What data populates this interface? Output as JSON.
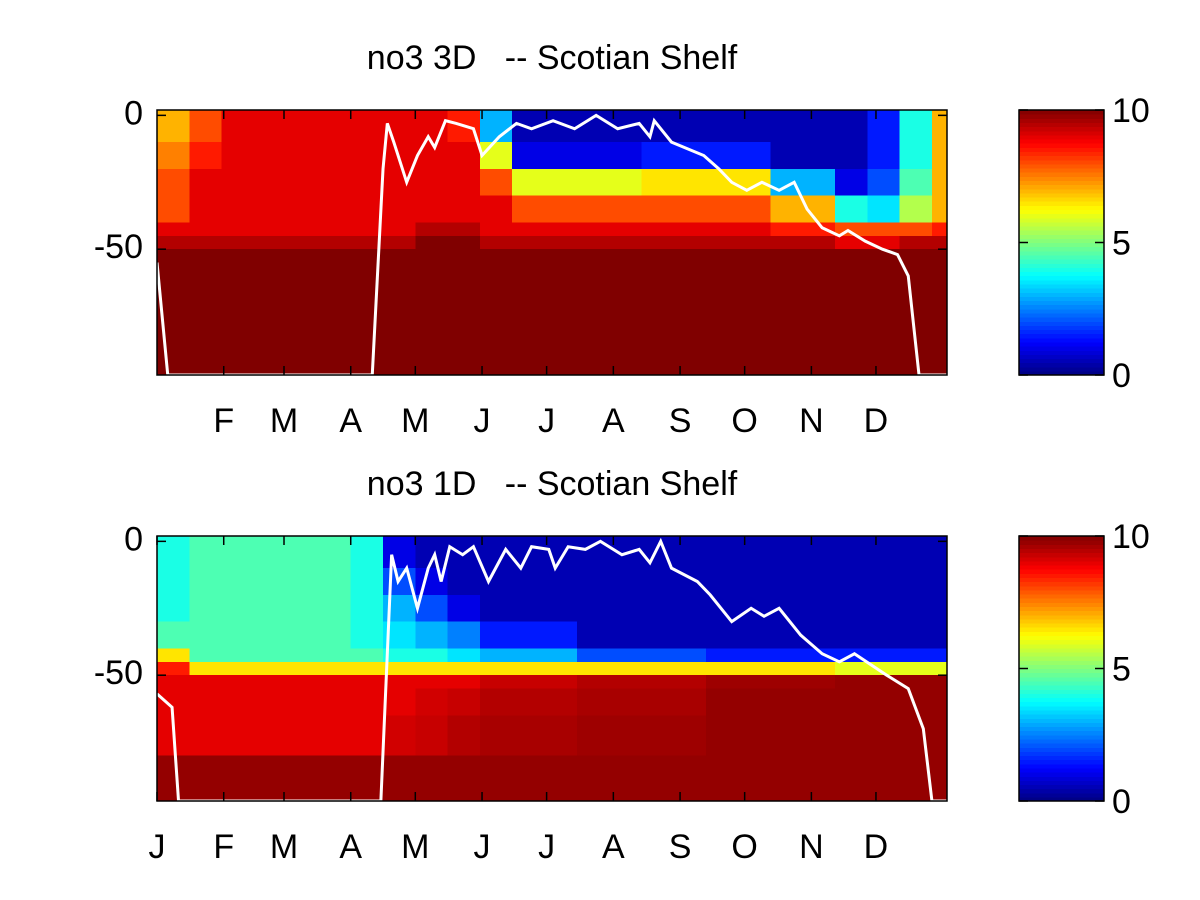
{
  "chart_data": [
    {
      "type": "heatmap",
      "title": "no3 3D   -- Scotian Shelf",
      "colormap": "jet",
      "clim": [
        0,
        10
      ],
      "cticks": [
        0,
        5,
        10
      ],
      "xlim": [
        1,
        368
      ],
      "ylim": [
        -97,
        2
      ],
      "yticks": [
        -50,
        0
      ],
      "xticks": [
        {
          "value": 32,
          "label": "F"
        },
        {
          "value": 60,
          "label": "M"
        },
        {
          "value": 91,
          "label": "A"
        },
        {
          "value": 121,
          "label": "M"
        },
        {
          "value": 152,
          "label": "J"
        },
        {
          "value": 182,
          "label": "J"
        },
        {
          "value": 213,
          "label": "A"
        },
        {
          "value": 244,
          "label": "S"
        },
        {
          "value": 274,
          "label": "O"
        },
        {
          "value": 305,
          "label": "N"
        },
        {
          "value": 335,
          "label": "D"
        }
      ],
      "x_bins": [
        1,
        16,
        31,
        46,
        61,
        76,
        91,
        106,
        121,
        136,
        151,
        166,
        181,
        196,
        211,
        226,
        241,
        256,
        271,
        286,
        301,
        316,
        331,
        346,
        361,
        368
      ],
      "y_bins": [
        2,
        -10,
        -20,
        -30,
        -40,
        -45,
        -50,
        -55,
        -65,
        -80,
        -97
      ],
      "z": [
        [
          7,
          7.5,
          8,
          8,
          9,
          9.5,
          10,
          10,
          10,
          10
        ],
        [
          8,
          8.5,
          9,
          9,
          9,
          9.5,
          10,
          10,
          10,
          10
        ],
        [
          9,
          9,
          9,
          9,
          9,
          9.5,
          10,
          10,
          10,
          10
        ],
        [
          9,
          9,
          9,
          9,
          9,
          9.5,
          10,
          10,
          10,
          10
        ],
        [
          9,
          9,
          9,
          9,
          9,
          9.5,
          10,
          10,
          10,
          10
        ],
        [
          9,
          9,
          9,
          9,
          9,
          9.5,
          10,
          10,
          10,
          10
        ],
        [
          9,
          9,
          9,
          9,
          9,
          9.5,
          10,
          10,
          10,
          10
        ],
        [
          9,
          9,
          9,
          9,
          9,
          9.5,
          10,
          10,
          10,
          10
        ],
        [
          9,
          9,
          9,
          9,
          9.5,
          10,
          10,
          10,
          10,
          10
        ],
        [
          8.5,
          9,
          9,
          9,
          9.5,
          10,
          10,
          10,
          10,
          10
        ],
        [
          3,
          6,
          8,
          9,
          9,
          9.5,
          10,
          10,
          10,
          10
        ],
        [
          0.5,
          1,
          6,
          8,
          9,
          9.5,
          10,
          10,
          10,
          10
        ],
        [
          0.5,
          1,
          6,
          8,
          9,
          9.5,
          10,
          10,
          10,
          10
        ],
        [
          0.5,
          1,
          6,
          8,
          9,
          9.5,
          10,
          10,
          10,
          10
        ],
        [
          0.5,
          1,
          6,
          8,
          9,
          9.5,
          10,
          10,
          10,
          10
        ],
        [
          0.5,
          1.5,
          6.5,
          8,
          9,
          9.5,
          10,
          10,
          10,
          10
        ],
        [
          0.5,
          1.5,
          6.5,
          8,
          9,
          9.5,
          10,
          10,
          10,
          10
        ],
        [
          0.5,
          1.5,
          6.5,
          8,
          9,
          9.5,
          10,
          10,
          10,
          10
        ],
        [
          0.5,
          1.5,
          6.5,
          8,
          9,
          9.5,
          10,
          10,
          10,
          10
        ],
        [
          0.5,
          0.5,
          3,
          7,
          8.5,
          9.5,
          10,
          10,
          10,
          10
        ],
        [
          0.5,
          0.5,
          3,
          7,
          8.5,
          9.5,
          10,
          10,
          10,
          10
        ],
        [
          0.5,
          0.5,
          1,
          4,
          8,
          9,
          10,
          10,
          10,
          10
        ],
        [
          1.5,
          1.5,
          2,
          3.5,
          8,
          9,
          10,
          10,
          10,
          10
        ],
        [
          4,
          4,
          4.5,
          5.5,
          8,
          9.5,
          10,
          10,
          10,
          10
        ],
        [
          7,
          7,
          7,
          7,
          8.5,
          9.5,
          10,
          10,
          10,
          10
        ]
      ],
      "line_color": "#ffffff",
      "line": {
        "x": [
          1,
          6,
          101,
          106,
          108,
          111,
          117,
          122,
          127,
          130,
          135,
          140,
          148,
          152,
          160,
          168,
          175,
          185,
          195,
          205,
          215,
          225,
          230,
          232,
          240,
          255,
          262,
          268,
          275,
          282,
          290,
          297,
          303,
          310,
          318,
          322,
          330,
          338,
          345,
          350,
          355,
          368
        ],
        "y": [
          -55,
          -97,
          -97,
          -20,
          -3,
          -10,
          -25,
          -15,
          -8,
          -12,
          -2,
          -3,
          -5,
          -15,
          -8,
          -3,
          -5,
          -2,
          -5,
          0,
          -5,
          -3,
          -8,
          -2,
          -10,
          -15,
          -20,
          -25,
          -28,
          -25,
          -28,
          -25,
          -35,
          -42,
          -45,
          -43,
          -47,
          -50,
          -52,
          -60,
          -97,
          -97
        ]
      }
    },
    {
      "type": "heatmap",
      "title": "no3 1D   -- Scotian Shelf",
      "colormap": "jet",
      "clim": [
        0,
        10
      ],
      "cticks": [
        0,
        5,
        10
      ],
      "xlim": [
        1,
        368
      ],
      "ylim": [
        -97,
        2
      ],
      "yticks": [
        -50,
        0
      ],
      "xticks": [
        {
          "value": 1,
          "label": "J"
        },
        {
          "value": 32,
          "label": "F"
        },
        {
          "value": 60,
          "label": "M"
        },
        {
          "value": 91,
          "label": "A"
        },
        {
          "value": 121,
          "label": "M"
        },
        {
          "value": 152,
          "label": "J"
        },
        {
          "value": 182,
          "label": "J"
        },
        {
          "value": 213,
          "label": "A"
        },
        {
          "value": 244,
          "label": "S"
        },
        {
          "value": 274,
          "label": "O"
        },
        {
          "value": 305,
          "label": "N"
        },
        {
          "value": 335,
          "label": "D"
        }
      ],
      "x_bins": [
        1,
        16,
        31,
        46,
        61,
        76,
        91,
        106,
        121,
        136,
        151,
        166,
        181,
        196,
        211,
        226,
        241,
        256,
        271,
        286,
        301,
        316,
        331,
        346,
        361,
        368
      ],
      "y_bins": [
        2,
        -10,
        -20,
        -30,
        -40,
        -45,
        -50,
        -55,
        -65,
        -80,
        -97
      ],
      "z": [
        [
          4,
          4,
          4,
          4.5,
          6.5,
          8.5,
          9,
          9,
          9,
          9.8
        ],
        [
          4.5,
          4.5,
          4.5,
          4.5,
          4.5,
          6.5,
          9,
          9,
          9,
          9.8
        ],
        [
          4.5,
          4.5,
          4.5,
          4.5,
          4.5,
          6.5,
          9,
          9,
          9,
          9.8
        ],
        [
          4.5,
          4.5,
          4.5,
          4.5,
          4.5,
          6.5,
          9,
          9,
          9,
          9.8
        ],
        [
          4.5,
          4.5,
          4.5,
          4.5,
          4.5,
          6.5,
          9,
          9,
          9,
          9.8
        ],
        [
          4.5,
          4.5,
          4.5,
          4.5,
          4.5,
          6.5,
          9,
          9,
          9,
          9.8
        ],
        [
          4,
          4,
          4,
          4,
          4.5,
          6.5,
          9,
          9,
          9,
          9.8
        ],
        [
          1,
          2,
          3,
          3.5,
          4,
          6.5,
          9,
          9,
          9.2,
          9.8
        ],
        [
          0.5,
          1,
          2,
          3,
          4,
          6.5,
          9,
          9.2,
          9.3,
          9.8
        ],
        [
          0.5,
          0.5,
          1,
          2.5,
          3.5,
          6.5,
          9,
          9.3,
          9.5,
          9.8
        ],
        [
          0.5,
          0.5,
          0.5,
          1.5,
          3,
          6.5,
          9.3,
          9.5,
          9.6,
          9.8
        ],
        [
          0.5,
          0.5,
          0.5,
          1.5,
          3,
          6.5,
          9.3,
          9.5,
          9.6,
          9.8
        ],
        [
          0.5,
          0.5,
          0.5,
          1.5,
          3,
          6.5,
          9.3,
          9.5,
          9.6,
          9.8
        ],
        [
          0.5,
          0.5,
          0.5,
          0.5,
          2,
          6.5,
          9.5,
          9.6,
          9.7,
          9.8
        ],
        [
          0.5,
          0.5,
          0.5,
          0.5,
          2,
          6.5,
          9.5,
          9.6,
          9.7,
          9.8
        ],
        [
          0.5,
          0.5,
          0.5,
          0.5,
          2,
          6.5,
          9.5,
          9.6,
          9.7,
          9.8
        ],
        [
          0.5,
          0.5,
          0.5,
          0.5,
          2,
          6.5,
          9.5,
          9.6,
          9.7,
          9.8
        ],
        [
          0.5,
          0.5,
          0.5,
          0.5,
          1.5,
          6.5,
          9.7,
          9.8,
          9.8,
          9.8
        ],
        [
          0.5,
          0.5,
          0.5,
          0.5,
          1.5,
          6.5,
          9.7,
          9.8,
          9.8,
          9.8
        ],
        [
          0.5,
          0.5,
          0.5,
          0.5,
          1.5,
          6.5,
          9.7,
          9.8,
          9.8,
          9.8
        ],
        [
          0.5,
          0.5,
          0.5,
          0.5,
          1.5,
          6.5,
          9.7,
          9.8,
          9.8,
          9.8
        ],
        [
          0.5,
          0.5,
          0.5,
          0.5,
          1.5,
          6,
          9.8,
          9.8,
          9.8,
          9.8
        ],
        [
          0.5,
          0.5,
          0.5,
          0.5,
          1.5,
          6,
          9.8,
          9.8,
          9.8,
          9.8
        ],
        [
          0.5,
          0.5,
          0.5,
          0.5,
          1.5,
          6,
          9.8,
          9.8,
          9.8,
          9.8
        ],
        [
          0.5,
          0.5,
          0.5,
          0.5,
          1.5,
          6,
          9.8,
          9.8,
          9.8,
          9.8
        ]
      ],
      "line_color": "#ffffff",
      "line": {
        "x": [
          1,
          8,
          11,
          105,
          110,
          113,
          117,
          122,
          127,
          130,
          133,
          137,
          143,
          148,
          155,
          163,
          170,
          175,
          183,
          186,
          192,
          200,
          207,
          217,
          225,
          230,
          235,
          240,
          252,
          258,
          268,
          277,
          283,
          290,
          300,
          310,
          318,
          325,
          340,
          350,
          357,
          361,
          368
        ],
        "y": [
          -57,
          -62,
          -97,
          -97,
          -5,
          -15,
          -10,
          -25,
          -10,
          -5,
          -15,
          -2,
          -5,
          -2,
          -15,
          -3,
          -10,
          -2,
          -3,
          -10,
          -2,
          -3,
          0,
          -5,
          -3,
          -8,
          0,
          -10,
          -15,
          -20,
          -30,
          -25,
          -28,
          -25,
          -35,
          -42,
          -45,
          -42,
          -50,
          -55,
          -70,
          -97,
          -97
        ]
      }
    }
  ]
}
